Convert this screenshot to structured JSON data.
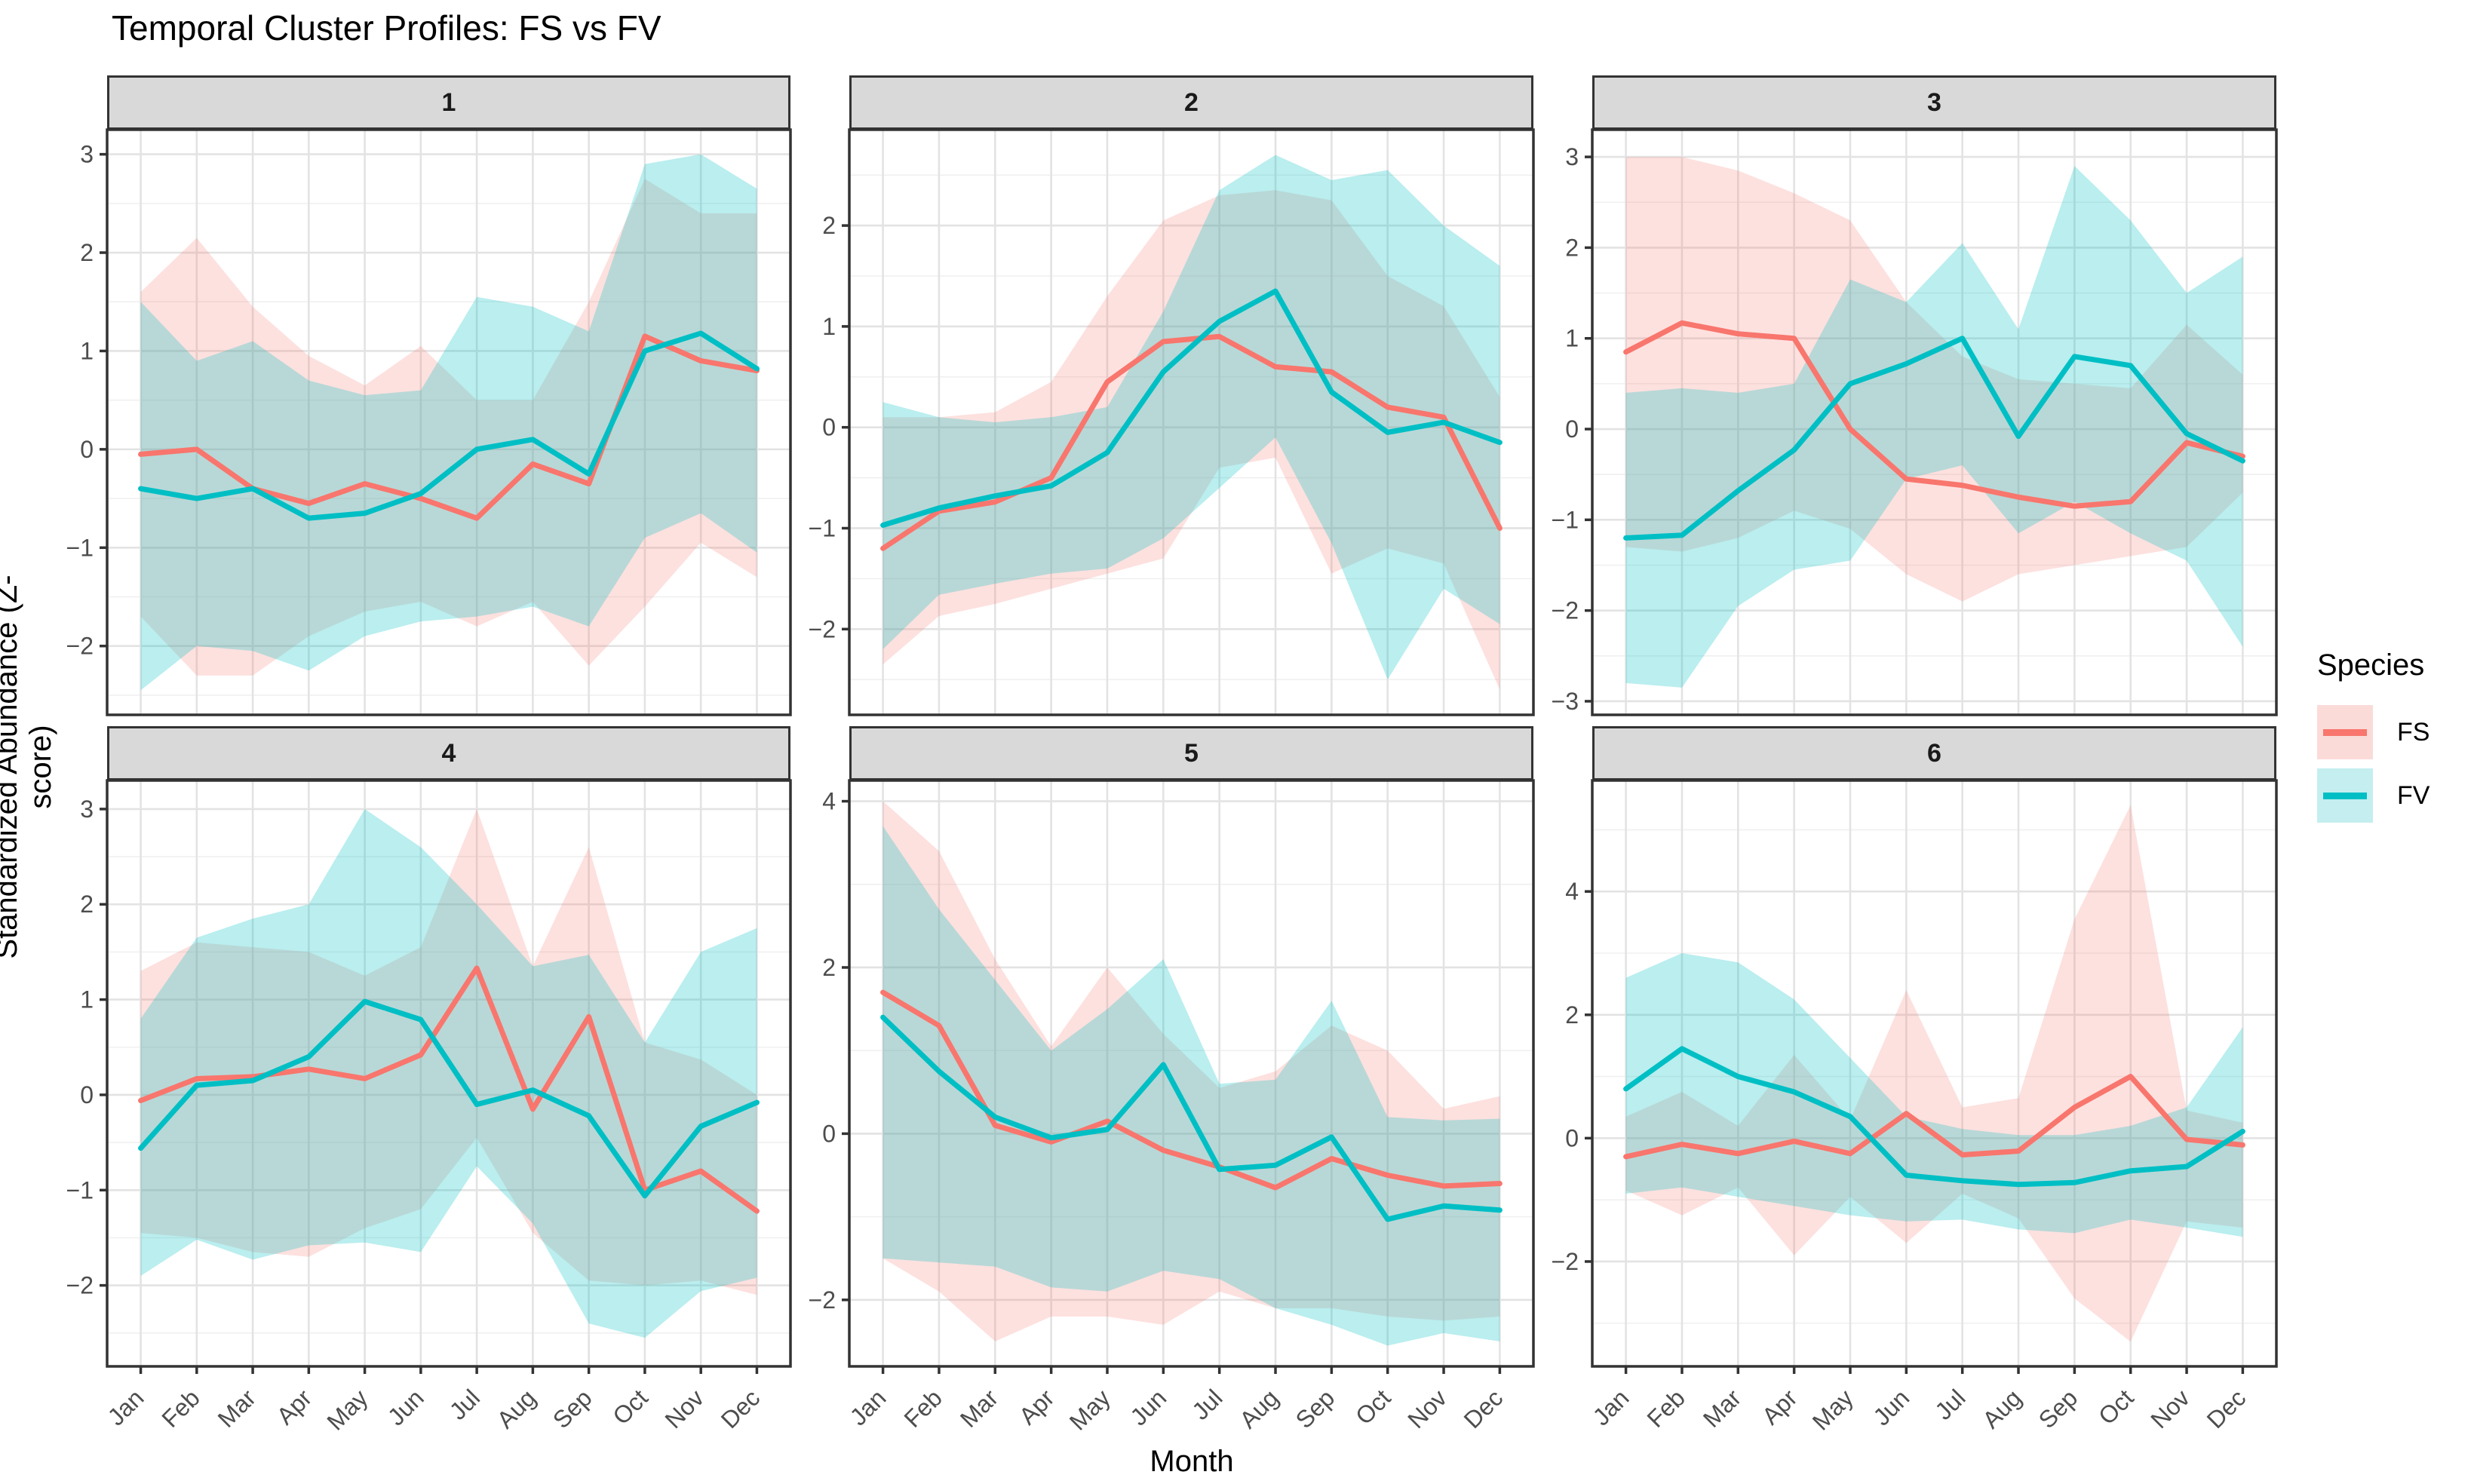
{
  "title": "Temporal Cluster Profiles: FS vs FV",
  "x_axis_label": "Month",
  "y_axis_label": "Standardized Abundance (Z-score)",
  "legend": {
    "title": "Species",
    "entries": [
      {
        "label": "FS",
        "color": "#F8766D",
        "fill": "#FBDBD8"
      },
      {
        "label": "FV",
        "color": "#00BFC4",
        "fill": "#C4EEF0"
      }
    ]
  },
  "colors": {
    "fs_line": "#F8766D",
    "fv_line": "#00BFC4",
    "fs_fill_opacity": 0.22,
    "fv_fill_opacity": 0.27,
    "strip_fill": "#d9d9d9",
    "panel_border": "#333333",
    "grid_major": "#e3e3e3",
    "grid_minor": "#f0f0f0",
    "axis_text": "#4d4d4d",
    "tick_mark": "#333333"
  },
  "chart_data": {
    "type": "line",
    "categories": [
      "Jan",
      "Feb",
      "Mar",
      "Apr",
      "May",
      "Jun",
      "Jul",
      "Aug",
      "Sep",
      "Oct",
      "Nov",
      "Dec"
    ],
    "legend_position": "right",
    "grid": true,
    "panels": [
      {
        "title": "1",
        "y_ticks": [
          3,
          2,
          1,
          0,
          -1,
          -2
        ],
        "y_range": [
          -2.7,
          3.25
        ],
        "series": [
          {
            "name": "FS",
            "mean": [
              -0.05,
              0.0,
              -0.4,
              -0.55,
              -0.35,
              -0.5,
              -0.7,
              -0.15,
              -0.35,
              1.15,
              0.9,
              0.8
            ],
            "upper": [
              1.6,
              2.15,
              1.45,
              0.95,
              0.65,
              1.05,
              0.5,
              0.5,
              1.5,
              2.75,
              2.4,
              2.4
            ],
            "lower": [
              -1.7,
              -2.3,
              -2.3,
              -1.9,
              -1.65,
              -1.55,
              -1.8,
              -1.55,
              -2.2,
              -1.6,
              -0.95,
              -1.3
            ]
          },
          {
            "name": "FV",
            "mean": [
              -0.4,
              -0.5,
              -0.4,
              -0.7,
              -0.65,
              -0.45,
              0.0,
              0.1,
              -0.25,
              1.0,
              1.18,
              0.82
            ],
            "upper": [
              1.5,
              0.9,
              1.1,
              0.7,
              0.55,
              0.6,
              1.55,
              1.45,
              1.2,
              2.9,
              3.0,
              2.65
            ],
            "lower": [
              -2.45,
              -2.0,
              -2.05,
              -2.25,
              -1.9,
              -1.75,
              -1.7,
              -1.6,
              -1.8,
              -0.9,
              -0.65,
              -1.05
            ]
          }
        ]
      },
      {
        "title": "2",
        "y_ticks": [
          2,
          1,
          0,
          -1,
          -2
        ],
        "y_range": [
          -2.85,
          2.95
        ],
        "series": [
          {
            "name": "FS",
            "mean": [
              -1.2,
              -0.83,
              -0.74,
              -0.5,
              0.45,
              0.85,
              0.9,
              0.6,
              0.55,
              0.2,
              0.1,
              -1.0
            ],
            "upper": [
              0.1,
              0.1,
              0.15,
              0.45,
              1.3,
              2.05,
              2.3,
              2.35,
              2.25,
              1.5,
              1.2,
              0.3
            ],
            "lower": [
              -2.35,
              -1.87,
              -1.75,
              -1.6,
              -1.45,
              -1.3,
              -0.4,
              -0.3,
              -1.45,
              -1.2,
              -1.35,
              -2.6
            ]
          },
          {
            "name": "FV",
            "mean": [
              -0.97,
              -0.8,
              -0.68,
              -0.58,
              -0.25,
              0.55,
              1.05,
              1.35,
              0.35,
              -0.05,
              0.05,
              -0.15
            ],
            "upper": [
              0.25,
              0.1,
              0.05,
              0.1,
              0.2,
              1.15,
              2.35,
              2.7,
              2.45,
              2.55,
              2.0,
              1.6
            ],
            "lower": [
              -2.2,
              -1.66,
              -1.55,
              -1.45,
              -1.4,
              -1.1,
              -0.6,
              -0.1,
              -1.15,
              -2.5,
              -1.6,
              -1.95
            ]
          }
        ]
      },
      {
        "title": "3",
        "y_ticks": [
          3,
          2,
          1,
          0,
          -1,
          -2,
          -3
        ],
        "y_range": [
          -3.15,
          3.3
        ],
        "series": [
          {
            "name": "FS",
            "mean": [
              0.85,
              1.17,
              1.05,
              1.0,
              0.0,
              -0.55,
              -0.62,
              -0.75,
              -0.85,
              -0.8,
              -0.15,
              -0.3
            ],
            "upper": [
              3.0,
              3.0,
              2.85,
              2.6,
              2.3,
              1.4,
              0.8,
              0.55,
              0.5,
              0.45,
              1.15,
              0.6
            ],
            "lower": [
              -1.3,
              -1.35,
              -1.2,
              -0.9,
              -1.1,
              -1.6,
              -1.9,
              -1.6,
              -1.5,
              -1.4,
              -1.3,
              -0.7
            ]
          },
          {
            "name": "FV",
            "mean": [
              -1.2,
              -1.17,
              -0.68,
              -0.23,
              0.5,
              0.72,
              1.0,
              -0.08,
              0.8,
              0.7,
              -0.05,
              -0.35
            ],
            "upper": [
              0.4,
              0.45,
              0.4,
              0.5,
              1.65,
              1.4,
              2.05,
              1.1,
              2.9,
              2.3,
              1.5,
              1.9
            ],
            "lower": [
              -2.8,
              -2.85,
              -1.95,
              -1.55,
              -1.45,
              -0.55,
              -0.4,
              -1.15,
              -0.8,
              -1.15,
              -1.45,
              -2.4
            ]
          }
        ]
      },
      {
        "title": "4",
        "y_ticks": [
          3,
          2,
          1,
          0,
          -1,
          -2
        ],
        "y_range": [
          -2.85,
          3.3
        ],
        "series": [
          {
            "name": "FS",
            "mean": [
              -0.06,
              0.17,
              0.19,
              0.27,
              0.17,
              0.42,
              1.33,
              -0.15,
              0.82,
              -1.0,
              -0.8,
              -1.22
            ],
            "upper": [
              1.3,
              1.6,
              1.55,
              1.5,
              1.25,
              1.55,
              3.0,
              1.35,
              2.6,
              0.55,
              0.37,
              0.0
            ],
            "lower": [
              -1.45,
              -1.5,
              -1.65,
              -1.7,
              -1.4,
              -1.2,
              -0.45,
              -1.45,
              -1.95,
              -2.0,
              -1.95,
              -2.1
            ]
          },
          {
            "name": "FV",
            "mean": [
              -0.56,
              0.1,
              0.15,
              0.4,
              0.98,
              0.79,
              -0.1,
              0.05,
              -0.22,
              -1.06,
              -0.33,
              -0.08
            ],
            "upper": [
              0.8,
              1.65,
              1.85,
              2.0,
              3.0,
              2.6,
              2.0,
              1.35,
              1.47,
              0.55,
              1.5,
              1.75
            ],
            "lower": [
              -1.9,
              -1.52,
              -1.73,
              -1.58,
              -1.55,
              -1.65,
              -0.75,
              -1.35,
              -2.4,
              -2.55,
              -2.06,
              -1.92
            ]
          }
        ]
      },
      {
        "title": "5",
        "y_ticks": [
          4,
          2,
          0,
          -2
        ],
        "y_range": [
          -2.8,
          4.25
        ],
        "series": [
          {
            "name": "FS",
            "mean": [
              1.7,
              1.3,
              0.1,
              -0.1,
              0.15,
              -0.2,
              -0.4,
              -0.65,
              -0.3,
              -0.5,
              -0.63,
              -0.6
            ],
            "upper": [
              4.0,
              3.4,
              2.1,
              1.05,
              2.0,
              1.2,
              0.55,
              0.75,
              1.3,
              1.0,
              0.3,
              0.45
            ],
            "lower": [
              -1.5,
              -1.9,
              -2.5,
              -2.2,
              -2.2,
              -2.3,
              -1.9,
              -2.1,
              -2.1,
              -2.2,
              -2.25,
              -2.2
            ]
          },
          {
            "name": "FV",
            "mean": [
              1.4,
              0.75,
              0.2,
              -0.05,
              0.05,
              0.83,
              -0.43,
              -0.38,
              -0.04,
              -1.03,
              -0.87,
              -0.92
            ],
            "upper": [
              3.7,
              2.7,
              1.85,
              1.0,
              1.5,
              2.1,
              0.6,
              0.65,
              1.6,
              0.2,
              0.16,
              0.18
            ],
            "lower": [
              -1.5,
              -1.55,
              -1.6,
              -1.85,
              -1.9,
              -1.65,
              -1.75,
              -2.1,
              -2.3,
              -2.55,
              -2.4,
              -2.5
            ]
          }
        ]
      },
      {
        "title": "6",
        "y_ticks": [
          4,
          2,
          0,
          -2
        ],
        "y_range": [
          -3.7,
          5.8
        ],
        "series": [
          {
            "name": "FS",
            "mean": [
              -0.3,
              -0.1,
              -0.25,
              -0.05,
              -0.25,
              0.4,
              -0.27,
              -0.21,
              0.5,
              1.0,
              -0.02,
              -0.11
            ],
            "upper": [
              0.35,
              0.75,
              0.2,
              1.35,
              0.3,
              2.4,
              0.5,
              0.65,
              3.55,
              5.4,
              0.45,
              0.25
            ],
            "lower": [
              -0.85,
              -1.25,
              -0.8,
              -1.9,
              -0.95,
              -1.7,
              -0.9,
              -1.3,
              -2.6,
              -3.3,
              -1.35,
              -1.45
            ]
          },
          {
            "name": "FV",
            "mean": [
              0.8,
              1.45,
              1.0,
              0.75,
              0.35,
              -0.6,
              -0.69,
              -0.75,
              -0.72,
              -0.53,
              -0.46,
              0.11
            ],
            "upper": [
              2.6,
              3.0,
              2.85,
              2.25,
              1.3,
              0.35,
              0.15,
              0.05,
              0.05,
              0.2,
              0.5,
              1.8
            ],
            "lower": [
              -0.9,
              -0.8,
              -0.95,
              -1.1,
              -1.25,
              -1.35,
              -1.32,
              -1.48,
              -1.54,
              -1.32,
              -1.45,
              -1.6
            ]
          }
        ]
      }
    ]
  }
}
